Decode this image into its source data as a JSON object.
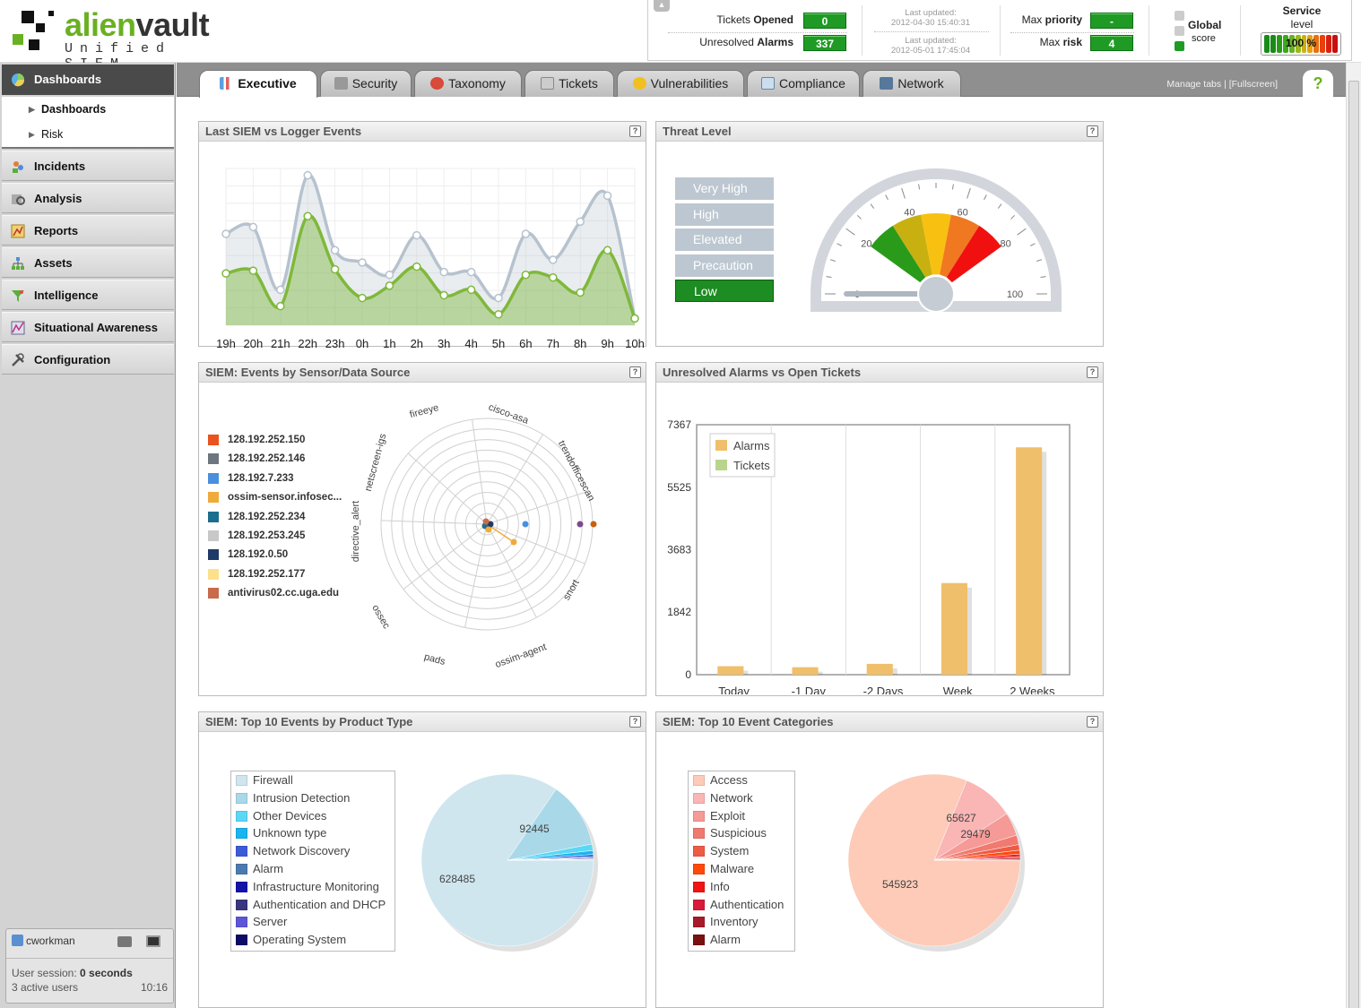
{
  "brand": {
    "name_part1": "alien",
    "name_part2": "vault",
    "subtitle": "Unified SIEM",
    "accent_color": "#6ab023"
  },
  "status": {
    "tickets_label_a": "Tickets",
    "tickets_label_b": "Opened",
    "tickets_value": "0",
    "alarms_label_a": "Unresolved",
    "alarms_label_b": "Alarms",
    "alarms_value": "337",
    "last_updated_label": "Last updated:",
    "last_updated_1": "2012-04-30 15:40:31",
    "last_updated_2": "2012-05-01 17:45:04",
    "max_priority_label_a": "Max",
    "max_priority_label_b": "priority",
    "max_priority_value": "-",
    "max_risk_label_a": "Max",
    "max_risk_label_b": "risk",
    "max_risk_value": "4",
    "global_label": "Global",
    "score_label": "score",
    "service_label": "Service",
    "level_label": "level",
    "service_value": "100 %"
  },
  "sidebar": {
    "top": {
      "label": "Dashboards",
      "icon": "dashboard-icon"
    },
    "sub": [
      {
        "label": "Dashboards"
      },
      {
        "label": "Risk"
      }
    ],
    "items": [
      {
        "label": "Incidents",
        "icon": "incidents-icon"
      },
      {
        "label": "Analysis",
        "icon": "analysis-icon"
      },
      {
        "label": "Reports",
        "icon": "reports-icon"
      },
      {
        "label": "Assets",
        "icon": "assets-icon"
      },
      {
        "label": "Intelligence",
        "icon": "intelligence-icon"
      },
      {
        "label": "Situational Awareness",
        "icon": "situational-awareness-icon"
      },
      {
        "label": "Configuration",
        "icon": "configuration-icon"
      }
    ]
  },
  "user": {
    "name": "cworkman",
    "session_label": "User session:",
    "session_value": "0 seconds",
    "active": "3 active users",
    "time": "10:16"
  },
  "tabs": [
    {
      "label": "Executive",
      "icon": "chart-icon",
      "active": true
    },
    {
      "label": "Security",
      "icon": "lock-icon"
    },
    {
      "label": "Taxonomy",
      "icon": "taxonomy-icon"
    },
    {
      "label": "Tickets",
      "icon": "tickets-icon"
    },
    {
      "label": "Vulnerabilities",
      "icon": "warning-icon"
    },
    {
      "label": "Compliance",
      "icon": "compliance-icon"
    },
    {
      "label": "Network",
      "icon": "network-icon"
    }
  ],
  "tabs_links": {
    "manage": "Manage tabs",
    "sep": "|",
    "fullscreen": "[Fullscreen]",
    "help": "?"
  },
  "panels": {
    "siem_logger": {
      "title": "Last SIEM vs Logger Events"
    },
    "threat": {
      "title": "Threat Level",
      "levels": [
        "Very High",
        "High",
        "Elevated",
        "Precaution",
        "Low"
      ],
      "active": "Low",
      "value": 0
    },
    "sensor": {
      "title": "SIEM: Events by Sensor/Data Source"
    },
    "alarms_tickets": {
      "title": "Unresolved Alarms vs Open Tickets"
    },
    "product": {
      "title": "SIEM: Top 10 Events by Product Type"
    },
    "categories": {
      "title": "SIEM: Top 10 Event Categories"
    }
  },
  "chart_data": [
    {
      "type": "area",
      "id": "siem_logger",
      "categories": [
        "19h",
        "20h",
        "21h",
        "22h",
        "23h",
        "0h",
        "1h",
        "2h",
        "3h",
        "4h",
        "5h",
        "6h",
        "7h",
        "8h",
        "9h",
        "10h"
      ],
      "series": [
        {
          "values": [
            57,
            62,
            16,
            100,
            45,
            36,
            27,
            56,
            29,
            29,
            10,
            57,
            38,
            66,
            85,
            -5
          ],
          "color": "#b6c2ce"
        },
        {
          "values": [
            28,
            30,
            4,
            70,
            31,
            10,
            19,
            33,
            12,
            16,
            -2,
            27,
            25,
            14,
            45,
            -5
          ],
          "color": "#7fb83b"
        }
      ]
    },
    {
      "type": "gauge",
      "id": "threat",
      "ticks": [
        "0",
        "20",
        "40",
        "60",
        "80",
        "100"
      ],
      "value": 0
    },
    {
      "type": "radar",
      "id": "sensor",
      "axes": [
        "fireeye",
        "cisco-asa",
        "trendofficescan",
        "snort",
        "ossim-agent",
        "pads",
        "ossec",
        "directive_alert",
        "netscreen-igs"
      ],
      "legend": [
        {
          "name": "128.192.252.150",
          "color": "#e8531e"
        },
        {
          "name": "128.192.252.146",
          "color": "#6d7680"
        },
        {
          "name": "128.192.7.233",
          "color": "#4a8fdd"
        },
        {
          "name": "ossim-sensor.infosec...",
          "color": "#f0aa3a"
        },
        {
          "name": "128.192.252.234",
          "color": "#1b6e8e"
        },
        {
          "name": "128.192.253.245",
          "color": "#c8c8c8"
        },
        {
          "name": "128.192.0.50",
          "color": "#1e3a66"
        },
        {
          "name": "128.192.252.177",
          "color": "#fde08c"
        },
        {
          "name": "antivirus02.cc.uga.edu",
          "color": "#c96a4a"
        }
      ]
    },
    {
      "type": "bar",
      "id": "alarms_tickets",
      "categories": [
        "Today",
        "-1 Day",
        "-2 Days",
        "Week",
        "2 Weeks"
      ],
      "series": [
        {
          "name": "Alarms",
          "values": [
            250,
            220,
            320,
            2700,
            6700
          ],
          "color": "#f0bf6b"
        },
        {
          "name": "Tickets",
          "values": [
            0,
            0,
            0,
            0,
            0
          ],
          "color": "#b9d58d"
        }
      ],
      "ylim": [
        0,
        7367
      ],
      "yticks": [
        "0",
        "1842",
        "3683",
        "5525",
        "7367"
      ]
    },
    {
      "type": "pie",
      "id": "product",
      "labels": [
        "Firewall",
        "Intrusion Detection",
        "Other Devices",
        "Unknown type",
        "Network Discovery",
        "Alarm",
        "Infrastructure Monitoring",
        "Authentication and DHCP",
        "Server",
        "Operating System"
      ],
      "values": [
        628485,
        92445,
        9000,
        5500,
        3000,
        1500,
        1200,
        900,
        700,
        500
      ],
      "colors": [
        "#cfe6ef",
        "#a9d8e8",
        "#5ad8f5",
        "#18b5f0",
        "#3c5bd8",
        "#4a7ab0",
        "#1414a8",
        "#3a3680",
        "#5c55d8",
        "#0c0c66"
      ],
      "shown_values": [
        "628485",
        "92445"
      ]
    },
    {
      "type": "pie",
      "id": "categories",
      "labels": [
        "Access",
        "Network",
        "Exploit",
        "Suspicious",
        "System",
        "Malware",
        "Info",
        "Authentication",
        "Inventory",
        "Alarm"
      ],
      "values": [
        545923,
        65627,
        29479,
        12000,
        7000,
        5000,
        3000,
        2000,
        1500,
        1000
      ],
      "colors": [
        "#fdcbb8",
        "#fab5b5",
        "#f59a96",
        "#f07a70",
        "#ee5b45",
        "#ff4a0a",
        "#f01414",
        "#d81a3a",
        "#a61a2a",
        "#7a1010"
      ],
      "shown_values": [
        "545923",
        "65627",
        "29479"
      ]
    }
  ]
}
